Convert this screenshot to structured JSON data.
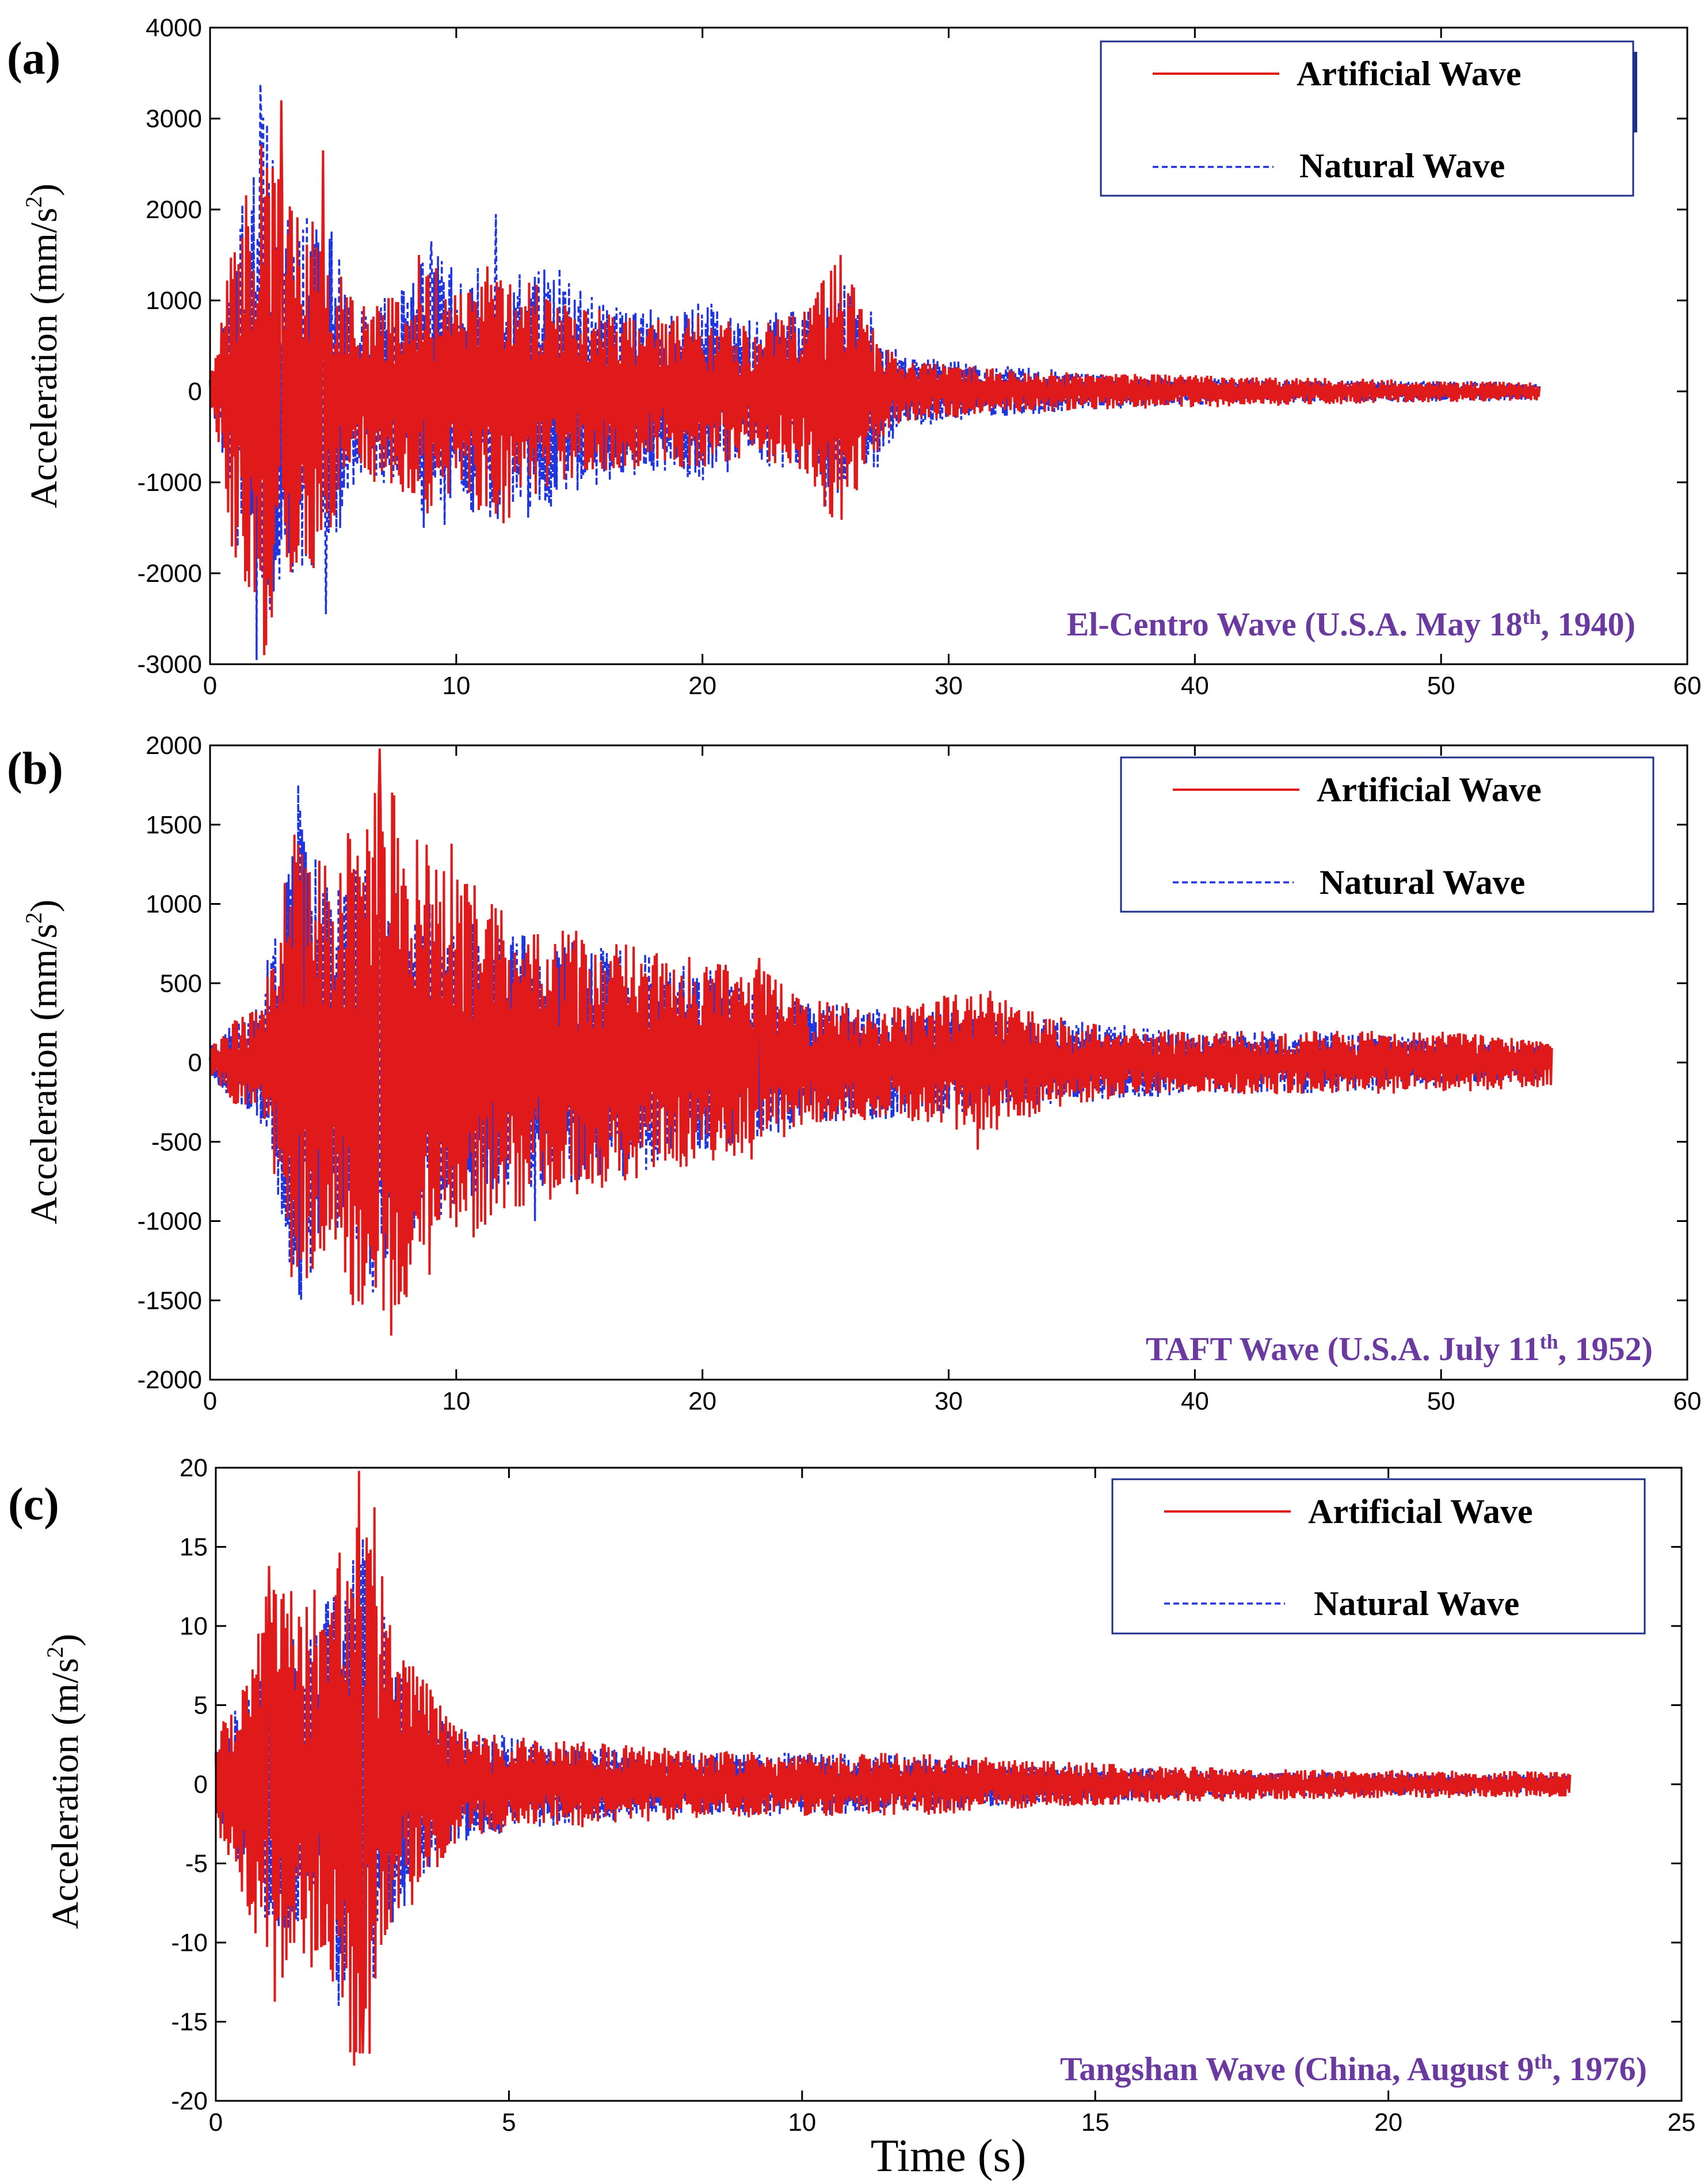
{
  "colors": {
    "artificial": "#e01a1a",
    "natural": "#1f35e0",
    "title_text": "#6b3aa0",
    "legend_border": "#1f2f8c"
  },
  "shared": {
    "xlabel": "Time (s)"
  },
  "chart_data": [
    {
      "type": "line",
      "panel_label": "(a)",
      "title": "El-Centro Wave (U.S.A. May 18th, 1940)",
      "title_parts": [
        "El-Centro Wave (U.S.A. May 18",
        "th",
        ", 1940)"
      ],
      "ylabel_main": "Acceleration (mm/s",
      "ylabel_sup": "2",
      "ylabel_end": ")",
      "xlim": [
        0,
        60
      ],
      "ylim": [
        -3000,
        4000
      ],
      "xticks": [
        0,
        10,
        20,
        30,
        40,
        50,
        60
      ],
      "yticks": [
        -3000,
        -2000,
        -1000,
        0,
        1000,
        2000,
        3000,
        4000
      ],
      "legend": [
        "Artificial Wave",
        "Natural Wave"
      ],
      "legend_position": "top-right",
      "series": [
        {
          "name": "Natural Wave",
          "style": "dashed",
          "x_end": 54,
          "envelope": [
            [
              0,
              300
            ],
            [
              1,
              1500
            ],
            [
              2,
              3400
            ],
            [
              3,
              2000
            ],
            [
              4,
              2000
            ],
            [
              5,
              1800
            ],
            [
              6,
              900
            ],
            [
              8,
              1200
            ],
            [
              9,
              1700
            ],
            [
              10,
              1300
            ],
            [
              12,
              1500
            ],
            [
              14,
              1300
            ],
            [
              16,
              1000
            ],
            [
              18,
              900
            ],
            [
              20,
              1000
            ],
            [
              22,
              800
            ],
            [
              24,
              950
            ],
            [
              26,
              1200
            ],
            [
              27,
              900
            ],
            [
              28,
              400
            ],
            [
              32,
              300
            ],
            [
              36,
              200
            ],
            [
              40,
              150
            ],
            [
              45,
              120
            ],
            [
              50,
              120
            ],
            [
              54,
              100
            ]
          ],
          "peaks": [
            [
              2.05,
              3380
            ],
            [
              2.6,
              -2200
            ],
            [
              4.7,
              -2450
            ],
            [
              9.0,
              1650
            ],
            [
              11.6,
              1950
            ],
            [
              14.2,
              1350
            ],
            [
              25.0,
              -1280
            ],
            [
              26.0,
              1050
            ]
          ]
        },
        {
          "name": "Artificial Wave",
          "style": "solid",
          "x_end": 54,
          "envelope": [
            [
              0,
              300
            ],
            [
              1,
              2000
            ],
            [
              2,
              3000
            ],
            [
              3,
              2300
            ],
            [
              4,
              2200
            ],
            [
              5,
              1500
            ],
            [
              6,
              900
            ],
            [
              8,
              1200
            ],
            [
              9,
              1400
            ],
            [
              10,
              1200
            ],
            [
              12,
              1500
            ],
            [
              14,
              1000
            ],
            [
              16,
              900
            ],
            [
              18,
              800
            ],
            [
              20,
              900
            ],
            [
              22,
              700
            ],
            [
              24,
              900
            ],
            [
              25.5,
              1500
            ],
            [
              27,
              700
            ],
            [
              28,
              350
            ],
            [
              32,
              250
            ],
            [
              36,
              200
            ],
            [
              40,
              180
            ],
            [
              45,
              150
            ],
            [
              50,
              120
            ],
            [
              54,
              100
            ]
          ],
          "peaks": [
            [
              2.2,
              -2900
            ],
            [
              2.9,
              3200
            ],
            [
              4.6,
              2650
            ],
            [
              8.5,
              1500
            ],
            [
              11.9,
              -1450
            ],
            [
              25.6,
              1500
            ],
            [
              25.2,
              -1350
            ]
          ]
        }
      ]
    },
    {
      "type": "line",
      "panel_label": "(b)",
      "title": "TAFT Wave (U.S.A. July 11th, 1952)",
      "title_parts": [
        "TAFT Wave (U.S.A. July 11",
        "th",
        ", 1952)"
      ],
      "ylabel_main": "Acceleration (mm/s",
      "ylabel_sup": "2",
      "ylabel_end": ")",
      "xlim": [
        0,
        60
      ],
      "ylim": [
        -2000,
        2000
      ],
      "xticks": [
        0,
        10,
        20,
        30,
        40,
        50,
        60
      ],
      "yticks": [
        -2000,
        -1500,
        -1000,
        -500,
        0,
        500,
        1000,
        1500,
        2000
      ],
      "legend": [
        "Artificial Wave",
        "Natural Wave"
      ],
      "legend_position": "top-right",
      "series": [
        {
          "name": "Natural Wave",
          "style": "dashed",
          "x_end": 54.5,
          "envelope": [
            [
              0,
              200
            ],
            [
              2,
              350
            ],
            [
              3.5,
              1700
            ],
            [
              5,
              1100
            ],
            [
              6.5,
              1400
            ],
            [
              8,
              1100
            ],
            [
              10,
              900
            ],
            [
              13,
              800
            ],
            [
              16,
              750
            ],
            [
              20,
              600
            ],
            [
              24,
              400
            ],
            [
              28,
              350
            ],
            [
              32,
              300
            ],
            [
              36,
              250
            ],
            [
              40,
              200
            ],
            [
              45,
              200
            ],
            [
              50,
              150
            ],
            [
              54.5,
              100
            ]
          ],
          "peaks": [
            [
              3.6,
              1750
            ],
            [
              6.6,
              -1450
            ],
            [
              8.9,
              1000
            ],
            [
              13.2,
              -1000
            ]
          ]
        },
        {
          "name": "Artificial Wave",
          "style": "solid",
          "x_end": 54.5,
          "envelope": [
            [
              0,
              200
            ],
            [
              2,
              350
            ],
            [
              3.5,
              1500
            ],
            [
              5,
              1200
            ],
            [
              6.8,
              1950
            ],
            [
              8,
              1500
            ],
            [
              10,
              1200
            ],
            [
              13,
              900
            ],
            [
              16,
              800
            ],
            [
              20,
              650
            ],
            [
              22,
              650
            ],
            [
              24,
              400
            ],
            [
              28,
              350
            ],
            [
              31,
              500
            ],
            [
              34,
              300
            ],
            [
              38,
              200
            ],
            [
              42,
              200
            ],
            [
              46,
              200
            ],
            [
              50,
              200
            ],
            [
              54.5,
              150
            ]
          ],
          "peaks": [
            [
              6.9,
              1980
            ],
            [
              7.5,
              -1530
            ],
            [
              9.8,
              1380
            ],
            [
              22.3,
              660
            ],
            [
              31.2,
              -550
            ]
          ]
        }
      ]
    },
    {
      "type": "line",
      "panel_label": "(c)",
      "title": "Tangshan Wave (China, August 9th, 1976)",
      "title_parts": [
        "Tangshan Wave (China, August 9",
        "th",
        ", 1976)"
      ],
      "ylabel_main": "Acceleration (m/s",
      "ylabel_sup": "2",
      "ylabel_end": ")",
      "xlim": [
        0,
        25
      ],
      "ylim": [
        -20,
        20
      ],
      "xticks": [
        0,
        5,
        10,
        15,
        20,
        25
      ],
      "yticks": [
        -20,
        -15,
        -10,
        -5,
        0,
        5,
        10,
        15,
        20
      ],
      "legend": [
        "Artificial Wave",
        "Natural Wave"
      ],
      "legend_position": "top-right",
      "series": [
        {
          "name": "Natural Wave",
          "style": "dashed",
          "x_end": 23.1,
          "envelope": [
            [
              0,
              5
            ],
            [
              0.5,
              8
            ],
            [
              1,
              11
            ],
            [
              1.5,
              10
            ],
            [
              2,
              12
            ],
            [
              2.5,
              15.5
            ],
            [
              3,
              9
            ],
            [
              3.5,
              6
            ],
            [
              4,
              4
            ],
            [
              5,
              3
            ],
            [
              6,
              2.5
            ],
            [
              8,
              2
            ],
            [
              10,
              2
            ],
            [
              12,
              1.8
            ],
            [
              14,
              1.2
            ],
            [
              16,
              1
            ],
            [
              18,
              0.8
            ],
            [
              20,
              0.7
            ],
            [
              23.1,
              0.6
            ]
          ],
          "peaks": [
            [
              2.5,
              15.5
            ],
            [
              2.4,
              -16
            ],
            [
              2.1,
              -14
            ]
          ]
        },
        {
          "name": "Artificial Wave",
          "style": "solid",
          "x_end": 23.1,
          "envelope": [
            [
              0,
              6
            ],
            [
              0.5,
              10
            ],
            [
              1,
              14
            ],
            [
              1.5,
              12
            ],
            [
              2,
              13
            ],
            [
              2.45,
              20
            ],
            [
              2.7,
              17
            ],
            [
              3,
              10
            ],
            [
              3.5,
              7
            ],
            [
              4,
              4
            ],
            [
              5,
              3
            ],
            [
              6,
              2.8
            ],
            [
              8,
              2.2
            ],
            [
              10,
              2
            ],
            [
              12,
              2
            ],
            [
              14,
              1.5
            ],
            [
              16,
              1.2
            ],
            [
              18,
              1
            ],
            [
              20,
              0.9
            ],
            [
              23.1,
              0.8
            ]
          ],
          "peaks": [
            [
              2.45,
              19.8
            ],
            [
              2.5,
              -17
            ],
            [
              0.9,
              13.8
            ],
            [
              2.7,
              17.5
            ]
          ]
        }
      ]
    }
  ]
}
